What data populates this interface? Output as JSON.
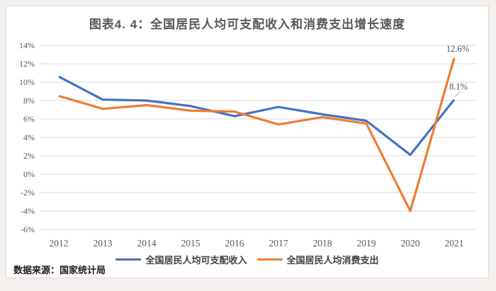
{
  "title": "图表4. 4：全国居民人均可支配收入和消费支出增长速度",
  "source_note": "数据来源：国家统计局",
  "panel": {
    "background": "#ffffff",
    "border_color": "#d9d9d9",
    "page_background": "#f4f0ee"
  },
  "chart_data": {
    "type": "line",
    "title": "图表4. 4：全国居民人均可支配收入和消费支出增长速度",
    "categories": [
      "2012",
      "2013",
      "2014",
      "2015",
      "2016",
      "2017",
      "2018",
      "2019",
      "2020",
      "2021"
    ],
    "series": [
      {
        "name": "全国居民人均可支配收入",
        "color": "#4472c4",
        "values": [
          10.6,
          8.1,
          8.0,
          7.4,
          6.3,
          7.3,
          6.5,
          5.8,
          2.1,
          8.1
        ]
      },
      {
        "name": "全国居民人均消费支出",
        "color": "#ed7d31",
        "values": [
          8.5,
          7.1,
          7.5,
          6.9,
          6.8,
          5.4,
          6.2,
          5.5,
          -4.0,
          12.6
        ]
      }
    ],
    "ylim": [
      -6,
      14
    ],
    "ytick_step": 2,
    "ytick_suffix": "%",
    "grid": "horizontal",
    "legend_position": "bottom",
    "annotations": [
      {
        "series": "全国居民人均消费支出",
        "category": "2021",
        "label": "12.6%"
      },
      {
        "series": "全国居民人均可支配收入",
        "category": "2021",
        "label": "8.1%"
      }
    ],
    "axis_color": "#595959",
    "gridline_color": "#d9d9d9",
    "annotation_color": "#44546a",
    "leader_color": "#a6a6a6"
  }
}
